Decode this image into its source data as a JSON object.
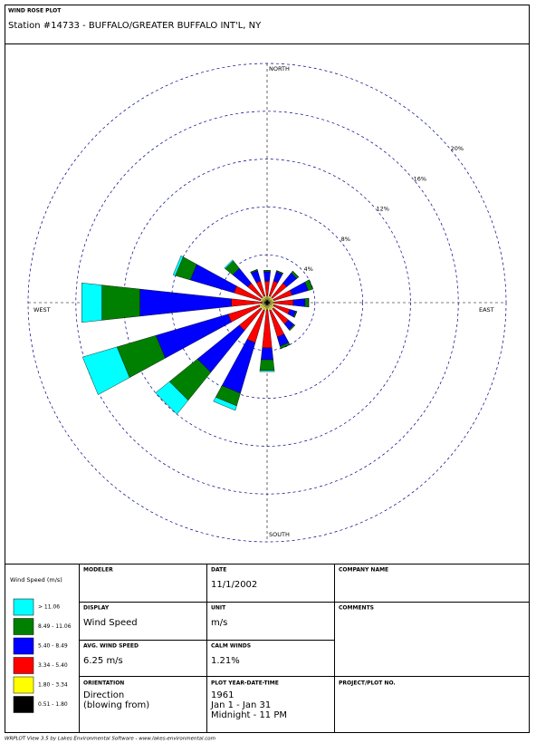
{
  "header": {
    "label": "WIND ROSE PLOT",
    "station": "Station #14733 - BUFFALO/GREATER BUFFALO INT'L, NY"
  },
  "chart_data": {
    "type": "wind_rose",
    "categories": [
      "NORTH",
      null,
      null,
      null,
      "EAST",
      null,
      null,
      null,
      "SOUTH",
      null,
      null,
      null,
      "WEST",
      null,
      null,
      null
    ],
    "series": [
      {
        "name": "0.51 - 1.80",
        "color": "#000000",
        "values": [
          0.2,
          0.2,
          0.2,
          0.2,
          0.2,
          0.2,
          0.2,
          0.2,
          0.2,
          0.2,
          0.2,
          0.2,
          0.1,
          0.2,
          0.2,
          0.2
        ]
      },
      {
        "name": "1.80 - 3.34",
        "color": "#ffff00",
        "values": [
          0.4,
          0.4,
          0.4,
          0.4,
          0.4,
          0.4,
          0.5,
          0.5,
          0.4,
          0.5,
          0.5,
          0.5,
          0.3,
          0.4,
          0.4,
          0.4
        ]
      },
      {
        "name": "3.34 - 5.40",
        "color": "#ff0000",
        "values": [
          1.2,
          1.3,
          1.5,
          1.6,
          1.6,
          1.4,
          1.6,
          2.3,
          3.2,
          2.8,
          2.3,
          2.7,
          2.6,
          2.3,
          1.5,
          1.3
        ]
      },
      {
        "name": "5.40 - 8.49",
        "color": "#0000ff",
        "values": [
          0.8,
          0.8,
          1.1,
          1.4,
          1.0,
          0.5,
          0.6,
          0.8,
          1.0,
          4.4,
          4.5,
          6.3,
          7.7,
          3.8,
          1.6,
          0.9
        ]
      },
      {
        "name": "8.49 - 11.06",
        "color": "#008000",
        "values": [
          0.1,
          0.1,
          0.2,
          0.4,
          0.3,
          0.1,
          0.1,
          0.2,
          0.9,
          1.1,
          3.0,
          3.4,
          3.2,
          1.3,
          0.8,
          0.1
        ]
      },
      {
        "name": "> 11.06",
        "color": "#00ffff",
        "values": [
          0,
          0,
          0,
          0,
          0,
          0,
          0,
          0,
          0.1,
          0.4,
          1.5,
          3.0,
          1.7,
          0.2,
          0.1,
          0
        ]
      }
    ],
    "rlim": [
      0,
      20
    ],
    "rticks": [
      {
        "value": 4,
        "label": "4%"
      },
      {
        "value": 8,
        "label": "8%"
      },
      {
        "value": 12,
        "label": "12%"
      },
      {
        "value": 16,
        "label": "16%"
      },
      {
        "value": 20,
        "label": "20%"
      }
    ],
    "legend_title": "Wind Speed (m/s)"
  },
  "info_table": {
    "modeler": {
      "label": "MODELER"
    },
    "date": {
      "label": "DATE",
      "value": "11/1/2002"
    },
    "company_name": {
      "label": "COMPANY NAME"
    },
    "display": {
      "label": "DISPLAY",
      "value": "Wind Speed"
    },
    "unit": {
      "label": "UNIT",
      "value": "m/s"
    },
    "comments": {
      "label": "COMMENTS"
    },
    "avg_wind_speed": {
      "label": "AVG. WIND SPEED",
      "value": "6.25 m/s"
    },
    "calm_winds": {
      "label": "CALM WINDS",
      "value": "1.21%"
    },
    "orientation": {
      "label": "ORIENTATION",
      "lines": [
        "Direction",
        "(blowing from)"
      ]
    },
    "plot_year": {
      "label": "PLOT YEAR-DATE-TIME",
      "lines": [
        "1961",
        "Jan 1 - Jan 31",
        "Midnight - 11 PM"
      ]
    },
    "project": {
      "label": "PROJECT/PLOT NO."
    }
  },
  "footer": "WRPLOT View 3.5 by Lakes Environmental Software - www.lakes-environmental.com"
}
